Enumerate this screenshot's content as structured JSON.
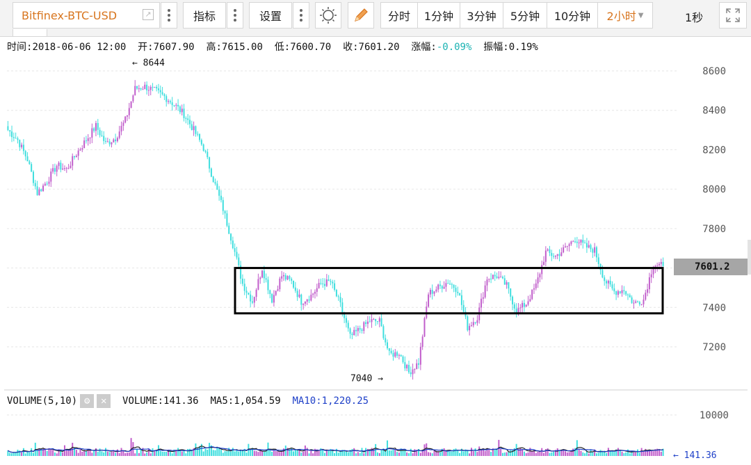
{
  "toolbar": {
    "symbol": "Bitfinex-BTC-USD",
    "indicators_label": "指标",
    "settings_label": "设置",
    "periods": [
      "分时",
      "1分钟",
      "3分钟",
      "5分钟",
      "10分钟",
      "2小时"
    ],
    "active_period": "2小时",
    "refresh_label": "1秒"
  },
  "info_bar": {
    "time_label": "时间:",
    "time": "2018-06-06 12:00",
    "open_label": "开:",
    "open": "7607.90",
    "high_label": "高:",
    "high": "7615.00",
    "low_label": "低:",
    "low": "7600.70",
    "close_label": "收:",
    "close": "7601.20",
    "change_label": "涨幅:",
    "change": "-0.09%",
    "amplitude_label": "振幅:",
    "amplitude": "0.19%"
  },
  "volume_bar": {
    "title": "VOLUME(5,10)",
    "volume_label": "VOLUME:",
    "volume": "141.36",
    "ma5_label": "MA5:",
    "ma5": "1,054.59",
    "ma10_label": "MA10:",
    "ma10": "1,220.25"
  },
  "colors": {
    "up": "#c15ecb",
    "down": "#3fdede",
    "ma5": "#222222",
    "ma10": "#1e40c8",
    "grid": "#e6e6e6"
  },
  "chart_data": [
    {
      "type": "candlestick",
      "title": "",
      "xlabel": "",
      "ylabel": "",
      "ylim": [
        7040,
        8660
      ],
      "y_ticks": [
        "8600",
        "8400",
        "8200",
        "8000",
        "7800",
        "7600",
        "7400",
        "7200"
      ],
      "grid": true,
      "max_marker": "← 8644",
      "min_marker": "7040 →",
      "last_price": "7601.2",
      "highlight_box": {
        "y_range": [
          7370,
          7600
        ]
      },
      "close_path": [
        8300,
        8250,
        8150,
        7980,
        8040,
        8120,
        8100,
        8180,
        8250,
        8320,
        8230,
        8260,
        8350,
        8510,
        8520,
        8500,
        8470,
        8430,
        8380,
        8300,
        8210,
        8050,
        7900,
        7720,
        7520,
        7430,
        7600,
        7440,
        7560,
        7530,
        7430,
        7460,
        7520,
        7530,
        7410,
        7250,
        7290,
        7330,
        7330,
        7160,
        7170,
        7070,
        7120,
        7470,
        7500,
        7530,
        7490,
        7300,
        7350,
        7550,
        7560,
        7510,
        7380,
        7420,
        7510,
        7680,
        7660,
        7700,
        7750,
        7710,
        7690,
        7540,
        7480,
        7490,
        7420,
        7440,
        7620,
        7610
      ],
      "x_start_index": 0
    },
    {
      "type": "bar",
      "title": "",
      "ylim": [
        0,
        11000
      ],
      "y_ticks": [
        "10000"
      ],
      "last_volume": "← 141.36"
    }
  ]
}
